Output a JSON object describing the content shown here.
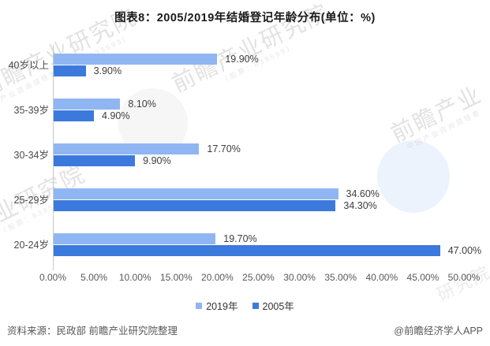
{
  "title": "图表8：2005/2019年结婚登记年龄分布(单位：%)",
  "chart_data": {
    "type": "bar",
    "orientation": "horizontal",
    "title": "图表8：2005/2019年结婚登记年龄分布(单位：%)",
    "unit": "%",
    "categories": [
      "40岁以上",
      "35-39岁",
      "30-34岁",
      "25-29岁",
      "20-24岁"
    ],
    "series": [
      {
        "name": "2019年",
        "color": "#8FB6F2",
        "values": [
          19.9,
          8.1,
          17.7,
          34.6,
          19.7
        ]
      },
      {
        "name": "2005年",
        "color": "#3C79DC",
        "values": [
          3.9,
          4.9,
          9.9,
          34.3,
          47.0
        ]
      }
    ],
    "value_labels": [
      [
        "19.90%",
        "8.10%",
        "17.70%",
        "34.60%",
        "19.70%"
      ],
      [
        "3.90%",
        "4.90%",
        "9.90%",
        "34.30%",
        "47.00%"
      ]
    ],
    "x_ticks": [
      "0.00%",
      "5.00%",
      "10.00%",
      "15.00%",
      "20.00%",
      "25.00%",
      "30.00%",
      "35.00%",
      "40.00%",
      "45.00%",
      "50.00%"
    ],
    "xlim": [
      0,
      50
    ],
    "grid": false,
    "legend_position": "bottom-center"
  },
  "legend": [
    {
      "label": "2019年",
      "color": "#8FB6F2"
    },
    {
      "label": "2005年",
      "color": "#3C79DC"
    }
  ],
  "footer": {
    "source": "资料来源：民政部 前瞻产业研究院整理",
    "credit": "@前瞻经济学人APP"
  },
  "watermarks": {
    "top_left": "前瞻产业研究院",
    "top_left_sub": "产业咨询领导者（股票：839599）",
    "center": "前瞻产业研究院",
    "center_sub": "（股票：839599）",
    "right": "前瞻产业",
    "right_sub": "中国产业咨询领导者",
    "bottom_left": "产业研究院",
    "bottom_left_sub": "（股票：839599）",
    "bottom_right": "研究院"
  }
}
